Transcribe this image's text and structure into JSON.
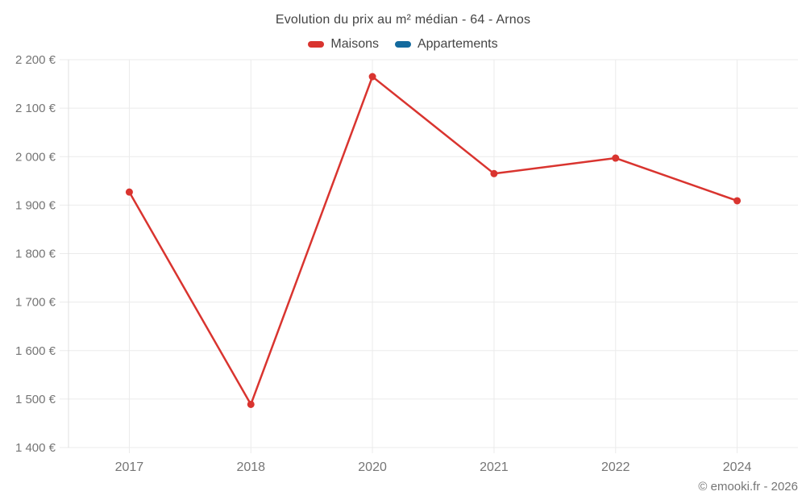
{
  "title": "Evolution du prix au m² médian - 64 - Arnos",
  "footer": {
    "copyright": "© emooki.fr - 2026"
  },
  "colors": {
    "grid": "#ebebeb",
    "axis": "#e0e0e0",
    "tick_label": "#757575",
    "title_text": "#444444"
  },
  "chart_data": {
    "type": "line",
    "title": "Evolution du prix au m² médian - 64 - Arnos",
    "categories": [
      "2017",
      "2018",
      "2020",
      "2021",
      "2022",
      "2024"
    ],
    "series": [
      {
        "name": "Maisons",
        "color": "#d9342f",
        "values": [
          1927,
          1489,
          2165,
          1965,
          1997,
          1909
        ]
      },
      {
        "name": "Appartements",
        "color": "#136a9e",
        "values": []
      }
    ],
    "xlabel": "",
    "ylabel": "",
    "ylim": [
      1400,
      2200
    ],
    "ytick_step": 100,
    "ytick_format": "{value} €",
    "grid": true,
    "legend_position": "top"
  }
}
